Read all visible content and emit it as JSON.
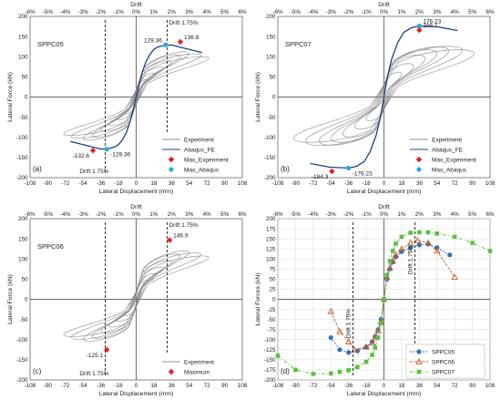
{
  "colors": {
    "experiment": "#8c8c8c",
    "abaqus": "#1f3f8a",
    "max_experiment": "#e0202a",
    "max_abaqus": "#35a7e0",
    "sppc05": "#2e74b5",
    "sppc06": "#c0622c",
    "sppc07": "#5cc043",
    "drift_line": "#000000"
  },
  "chart_data": [
    {
      "type": "line",
      "panel": "(a)",
      "specimen": "SPPC05",
      "xlabel": "Lateral Displacement (mm)",
      "ylabel": "Lateral Force (kN)",
      "top_label": "Drift",
      "xlim": [
        -108,
        108
      ],
      "ylim": [
        -200,
        200
      ],
      "x_ticks": [
        "-108",
        "-90",
        "-72",
        "-54",
        "-36",
        "-18",
        "0",
        "18",
        "36",
        "54",
        "72",
        "90",
        "108"
      ],
      "y_ticks": [
        "-200",
        "-150",
        "-100",
        "-50",
        "0",
        "50",
        "100",
        "150",
        "200"
      ],
      "top_ticks": [
        "-6%",
        "-5%",
        "-4%",
        "-3%",
        "-2%",
        "-1%",
        "0%",
        "1%",
        "2%",
        "3%",
        "4%",
        "5%",
        "6%"
      ],
      "legend": [
        "Experiment",
        "Abaqus_FE",
        "Max_Experiment",
        "Max_Abaqus"
      ],
      "legend_position": "bottom-right",
      "series": [
        {
          "name": "Abaqus_FE",
          "x": [
            -67,
            -54,
            -36,
            -28,
            -22,
            -18,
            -14,
            -10,
            -6,
            -3,
            0,
            3,
            6,
            10,
            14,
            18,
            22,
            28,
            36,
            54,
            67
          ],
          "y": [
            -110,
            -118,
            -129,
            -128,
            -124,
            -118,
            -106,
            -88,
            -60,
            -30,
            0,
            30,
            60,
            88,
            106,
            118,
            124,
            128,
            129,
            118,
            110
          ]
        }
      ],
      "points": [
        {
          "series": "Max_Experiment",
          "x": 45,
          "y": 136.8,
          "label": "136.8"
        },
        {
          "series": "Max_Abaqus",
          "x": 30,
          "y": 129.36,
          "label": "129.36"
        },
        {
          "series": "Max_Experiment",
          "x": -44,
          "y": -132.6,
          "label": "-132.6"
        },
        {
          "series": "Max_Abaqus",
          "x": -30,
          "y": -129.36,
          "label": "-129.36"
        }
      ],
      "annotations": [
        {
          "text": "Drift 1.75%",
          "x": 31.5
        },
        {
          "text": "Drift 1.75%",
          "x": -31.5
        }
      ]
    },
    {
      "type": "line",
      "panel": "(b)",
      "specimen": "SPPC07",
      "xlabel": "Lateral Displacement (mm)",
      "ylabel": "Lateral Force (kN)",
      "top_label": "Drift",
      "xlim": [
        -108,
        108
      ],
      "ylim": [
        -200,
        200
      ],
      "x_ticks": [
        "-108",
        "-90",
        "-72",
        "-54",
        "-36",
        "-18",
        "0",
        "18",
        "36",
        "54",
        "72",
        "90",
        "108"
      ],
      "y_ticks": [
        "-200",
        "-150",
        "-100",
        "-50",
        "0",
        "50",
        "100",
        "150",
        "200"
      ],
      "top_ticks": [
        "-6%",
        "-5%",
        "-4%",
        "-3%",
        "-2%",
        "-1%",
        "0%",
        "1%",
        "2%",
        "3%",
        "4%",
        "5%",
        "6%"
      ],
      "legend": [
        "Experiment",
        "Abaqus_FE",
        "Max_Experiment",
        "Max_Abaqus"
      ],
      "legend_position": "bottom-right",
      "series": [
        {
          "name": "Abaqus_FE",
          "x": [
            -75,
            -55,
            -36,
            -28,
            -20,
            -14,
            -8,
            -4,
            0,
            4,
            8,
            14,
            20,
            28,
            36,
            55,
            75
          ],
          "y": [
            -165,
            -174,
            -176,
            -172,
            -160,
            -135,
            -95,
            -55,
            0,
            55,
            95,
            135,
            160,
            172,
            176,
            174,
            165
          ]
        }
      ],
      "points": [
        {
          "series": "Max_Experiment",
          "x": -53,
          "y": -184.3,
          "label": "-184.3"
        },
        {
          "series": "Max_Abaqus",
          "x": -36,
          "y": -176.23,
          "label": "-176.23"
        },
        {
          "series": "Max_Abaqus",
          "x": 36,
          "y": 176.23,
          "label": "176.23"
        },
        {
          "series": "Max_Experiment",
          "x": 36,
          "y": 166.1,
          "label": "166.1"
        }
      ],
      "annotations": []
    },
    {
      "type": "line",
      "panel": "(c)",
      "specimen": "SPPC06",
      "xlabel": "Lateral Displacement (mm)",
      "ylabel": "Lateral Force (kN)",
      "top_label": "Drift",
      "xlim": [
        -108,
        108
      ],
      "ylim": [
        -200,
        200
      ],
      "x_ticks": [
        "-108",
        "-90",
        "-72",
        "-54",
        "-36",
        "-18",
        "0",
        "18",
        "36",
        "54",
        "72",
        "90",
        "108"
      ],
      "y_ticks": [
        "-200",
        "-150",
        "-100",
        "-50",
        "0",
        "50",
        "100",
        "150",
        "200"
      ],
      "top_ticks": [
        "-6%",
        "-5%",
        "-4%",
        "-3%",
        "-2%",
        "-1%",
        "0%",
        "1%",
        "2%",
        "3%",
        "4%",
        "5%",
        "6%"
      ],
      "legend": [
        "Experiment",
        "Maximum"
      ],
      "legend_position": "bottom-right",
      "series": [],
      "points": [
        {
          "series": "Maximum",
          "x": 34,
          "y": 146.9,
          "label": "146.9"
        },
        {
          "series": "Maximum",
          "x": -30,
          "y": -125.1,
          "label": "-125.1"
        }
      ],
      "annotations": [
        {
          "text": "Drift 1.75%",
          "x": 31.5
        },
        {
          "text": "Drift 1.75%",
          "x": -31.5
        }
      ]
    },
    {
      "type": "line",
      "panel": "(d)",
      "specimen": "",
      "xlabel": "Lateral Displacement (mm)",
      "ylabel": "Lateral Forces (kN)",
      "top_label": "Drift",
      "xlim": [
        -108,
        108
      ],
      "ylim": [
        -200,
        200
      ],
      "x_ticks": [
        "-108",
        "-90",
        "-72",
        "-54",
        "-36",
        "-18",
        "0",
        "18",
        "36",
        "54",
        "72",
        "90",
        "108"
      ],
      "y_ticks": [
        "-200",
        "-175",
        "-150",
        "-125",
        "-100",
        "-75",
        "-50",
        "-25",
        "0",
        "25",
        "50",
        "75",
        "100",
        "125",
        "150",
        "175",
        "200"
      ],
      "top_ticks": [
        "-6%",
        "-5%",
        "-4%",
        "-3%",
        "-2%",
        "-1%",
        "0%",
        "1%",
        "2%",
        "3%",
        "4%",
        "5%",
        "6%"
      ],
      "legend": [
        "SPPC05",
        "SPPC06",
        "SPPC07"
      ],
      "legend_position": "bottom-right",
      "series": [
        {
          "name": "SPPC05",
          "x": [
            -54,
            -45,
            -36,
            -27,
            -18,
            -12,
            -9,
            -6,
            -3,
            0,
            3,
            6,
            9,
            12,
            18,
            27,
            36,
            45,
            54,
            67
          ],
          "y": [
            -95,
            -125,
            -132,
            -128,
            -118,
            -105,
            -92,
            -75,
            -50,
            0,
            50,
            75,
            92,
            105,
            118,
            128,
            135,
            137,
            128,
            110
          ]
        },
        {
          "name": "SPPC06",
          "x": [
            -54,
            -45,
            -36,
            -30,
            -18,
            -12,
            -9,
            -6,
            -3,
            0,
            3,
            6,
            9,
            12,
            18,
            27,
            34,
            45,
            54,
            72
          ],
          "y": [
            -30,
            -80,
            -105,
            -125,
            -118,
            -108,
            -95,
            -78,
            -55,
            0,
            55,
            78,
            95,
            110,
            125,
            140,
            146,
            140,
            120,
            55
          ]
        },
        {
          "name": "SPPC07",
          "x": [
            -108,
            -90,
            -72,
            -54,
            -45,
            -36,
            -27,
            -18,
            -12,
            -9,
            -6,
            -3,
            0,
            3,
            6,
            9,
            12,
            18,
            27,
            36,
            45,
            54,
            72,
            90,
            108
          ],
          "y": [
            -140,
            -175,
            -185,
            -184,
            -180,
            -176,
            -168,
            -155,
            -138,
            -120,
            -95,
            -60,
            0,
            60,
            95,
            120,
            138,
            155,
            165,
            166,
            166,
            163,
            155,
            140,
            120
          ]
        }
      ],
      "points": [],
      "annotations": [
        {
          "text": "Drift 1.75%",
          "x": 31.5
        },
        {
          "text": "Drift 1.75%",
          "x": -31.5
        }
      ]
    }
  ]
}
